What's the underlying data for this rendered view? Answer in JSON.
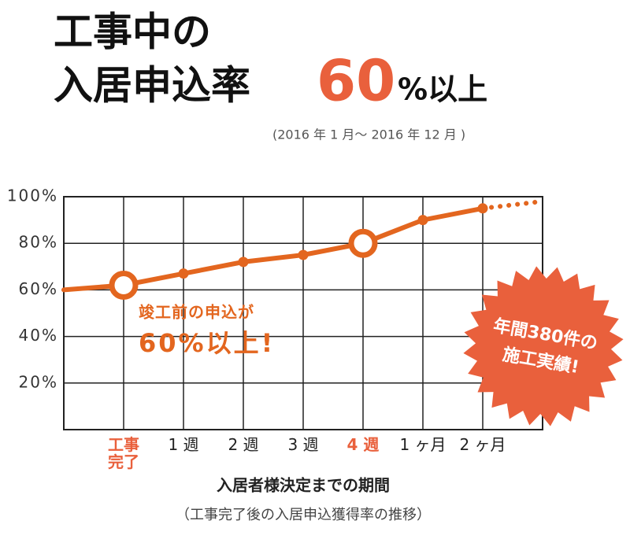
{
  "chart_data": {
    "type": "line",
    "title_lines": [
      "工事中の",
      "入居申込率"
    ],
    "title_highlight": "60",
    "title_suffix": "%以上",
    "subtitle": "(2016 年 1 月～ 2016 年 12 月 )",
    "categories": [
      null,
      "工事\n完了",
      "1 週",
      "2 週",
      "3 週",
      "4 週",
      "1 ヶ月",
      "2 ヶ月",
      null
    ],
    "highlight": [
      1,
      5
    ],
    "series": [
      {
        "color": "#e3661f",
        "values": [
          60,
          62,
          67,
          72,
          75,
          80,
          90,
          95,
          null
        ]
      },
      {
        "color": "#e3661f",
        "style": "dotted",
        "values": [
          null,
          null,
          null,
          null,
          null,
          null,
          null,
          95,
          98
        ]
      }
    ],
    "ylim": [
      0,
      100
    ],
    "yticks": [
      {
        "value": 20,
        "label": "20%"
      },
      {
        "value": 40,
        "label": "40%"
      },
      {
        "value": 60,
        "label": "60%"
      },
      {
        "value": 80,
        "label": "80%"
      },
      {
        "value": 100,
        "label": "100%"
      }
    ],
    "grid": true,
    "x_label": "入居者様決定までの期間",
    "x_sublabel": "（工事完了後の入居申込獲得率の推移）",
    "annotation": [
      "竣工前の申込が",
      "60%以上!"
    ],
    "badge": [
      "年間380件の",
      "施工実績!"
    ]
  }
}
